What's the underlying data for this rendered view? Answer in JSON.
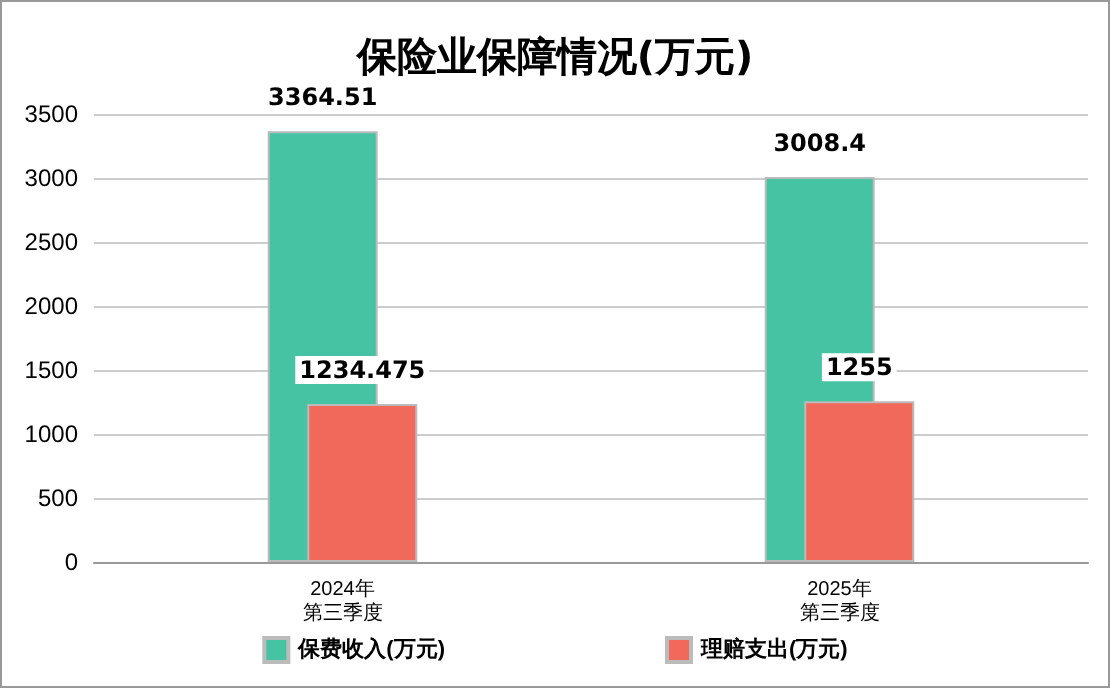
{
  "chart_data": {
    "type": "bar",
    "title": "保险业保障情况(万元)",
    "categories": [
      "2024年第三季度",
      "2025年第三季度"
    ],
    "series": [
      {
        "name": "保费收入(万元)",
        "color": "#45c3a3",
        "values": [
          3364.51,
          3008.4
        ]
      },
      {
        "name": "理赔支出(万元)",
        "color": "#f0695a",
        "values": [
          1234.475,
          1255
        ]
      }
    ],
    "ylim": [
      0,
      3500
    ],
    "yticks": [
      0,
      500,
      1000,
      1500,
      2000,
      2500,
      3000,
      3500
    ],
    "grid": "y",
    "legend": "bottom",
    "data_labels": true
  }
}
